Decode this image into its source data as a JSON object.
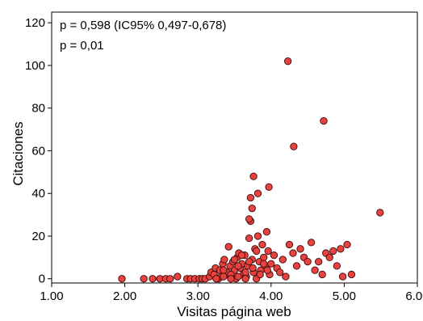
{
  "chart_data": {
    "type": "scatter",
    "xlabel": "Visitas página web",
    "ylabel": "Citaciones",
    "xlim": [
      1.0,
      6.0
    ],
    "ylim": [
      -2,
      125
    ],
    "x_ticks": [
      "1.00",
      "2.00",
      "3.00",
      "4.00",
      "5.00",
      "6.00"
    ],
    "y_ticks": [
      "0",
      "20",
      "40",
      "60",
      "80",
      "100",
      "120"
    ],
    "grid": false,
    "annotations": [
      "p = 0,598 (IC95% 0,497-0,678)",
      "p = 0,01"
    ],
    "marker_color": "#e8413e",
    "marker_edge": "#3a0c0c",
    "points": [
      [
        1.96,
        0
      ],
      [
        2.26,
        0
      ],
      [
        2.38,
        0
      ],
      [
        2.48,
        0
      ],
      [
        2.56,
        0
      ],
      [
        2.62,
        0
      ],
      [
        2.72,
        1
      ],
      [
        2.85,
        0
      ],
      [
        2.9,
        0
      ],
      [
        2.96,
        0
      ],
      [
        3.02,
        0
      ],
      [
        3.06,
        0
      ],
      [
        3.1,
        0
      ],
      [
        3.16,
        1
      ],
      [
        3.18,
        3
      ],
      [
        3.22,
        2
      ],
      [
        3.24,
        5
      ],
      [
        3.28,
        0
      ],
      [
        3.3,
        4
      ],
      [
        3.32,
        1
      ],
      [
        3.34,
        7
      ],
      [
        3.36,
        9
      ],
      [
        3.38,
        2
      ],
      [
        3.4,
        3
      ],
      [
        3.42,
        15
      ],
      [
        3.44,
        6
      ],
      [
        3.46,
        1
      ],
      [
        3.48,
        8
      ],
      [
        3.5,
        4
      ],
      [
        3.52,
        0
      ],
      [
        3.54,
        10
      ],
      [
        3.56,
        12
      ],
      [
        3.58,
        5
      ],
      [
        3.6,
        7
      ],
      [
        3.62,
        2
      ],
      [
        3.64,
        11
      ],
      [
        3.66,
        1
      ],
      [
        3.68,
        6
      ],
      [
        3.7,
        19
      ],
      [
        3.72,
        27
      ],
      [
        3.74,
        9
      ],
      [
        3.76,
        3
      ],
      [
        3.78,
        14
      ],
      [
        3.8,
        0
      ],
      [
        3.82,
        20
      ],
      [
        3.84,
        8
      ],
      [
        3.86,
        4
      ],
      [
        3.88,
        16
      ],
      [
        3.9,
        10
      ],
      [
        3.92,
        6
      ],
      [
        3.94,
        22
      ],
      [
        3.96,
        13
      ],
      [
        3.98,
        2
      ],
      [
        4.0,
        7
      ],
      [
        4.04,
        11
      ],
      [
        4.08,
        5
      ],
      [
        4.12,
        3
      ],
      [
        4.16,
        9
      ],
      [
        4.2,
        1
      ],
      [
        4.25,
        16
      ],
      [
        4.3,
        12
      ],
      [
        4.35,
        6
      ],
      [
        4.4,
        14
      ],
      [
        4.45,
        10
      ],
      [
        4.5,
        8
      ],
      [
        4.55,
        17
      ],
      [
        4.6,
        4
      ],
      [
        4.65,
        8
      ],
      [
        4.7,
        2
      ],
      [
        4.75,
        12
      ],
      [
        4.8,
        10
      ],
      [
        4.85,
        13
      ],
      [
        4.9,
        6
      ],
      [
        4.95,
        14
      ],
      [
        4.98,
        1
      ],
      [
        5.04,
        16
      ],
      [
        5.1,
        2
      ],
      [
        3.76,
        48
      ],
      [
        3.82,
        40
      ],
      [
        3.97,
        43
      ],
      [
        3.72,
        38
      ],
      [
        3.74,
        33
      ],
      [
        3.7,
        28
      ],
      [
        4.23,
        102
      ],
      [
        4.31,
        62
      ],
      [
        4.72,
        74
      ],
      [
        5.49,
        31
      ],
      [
        3.35,
        4
      ],
      [
        3.45,
        2
      ],
      [
        3.55,
        6
      ],
      [
        3.65,
        3
      ],
      [
        3.75,
        5
      ],
      [
        3.85,
        2
      ],
      [
        3.95,
        4
      ],
      [
        3.5,
        9
      ],
      [
        3.6,
        11
      ],
      [
        3.7,
        8
      ],
      [
        3.8,
        13
      ],
      [
        3.9,
        7
      ],
      [
        3.25,
        0
      ],
      [
        3.35,
        1
      ],
      [
        3.45,
        0
      ],
      [
        3.55,
        1
      ],
      [
        3.65,
        0
      ]
    ]
  }
}
